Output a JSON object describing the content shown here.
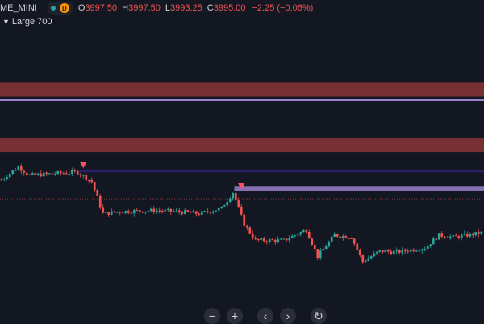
{
  "legend": {
    "symbol": "ME_MINI",
    "interval_badge": "D",
    "open_label": "O",
    "open_value": "3997.50",
    "high_label": "H",
    "high_value": "3997.50",
    "low_label": "L",
    "low_value": "3993.25",
    "close_label": "C",
    "close_value": "3995.00",
    "change": "−2.25 (−0.06%)"
  },
  "indicator": {
    "toggle": "▼",
    "name": "Large 700"
  },
  "colors": {
    "background": "#131722",
    "up": "#26a69a",
    "down": "#ef5350",
    "zone_red": "#a13c3c",
    "zone_purple": "#9b7fc9",
    "line_navy": "#2b1f6b"
  },
  "toolbar": {
    "zoom_out": "−",
    "zoom_in": "+",
    "scroll_left": "‹",
    "scroll_right": "›",
    "reset": "↻"
  },
  "chart_data": {
    "type": "candlestick",
    "price_path": [
      {
        "bar": 0,
        "price": 3992
      },
      {
        "bar": 6,
        "price": 4004
      },
      {
        "bar": 10,
        "price": 3996
      },
      {
        "bar": 20,
        "price": 3998
      },
      {
        "bar": 27,
        "price": 3999
      },
      {
        "bar": 32,
        "price": 3990
      },
      {
        "bar": 36,
        "price": 3960
      },
      {
        "bar": 42,
        "price": 3962
      },
      {
        "bar": 55,
        "price": 3963
      },
      {
        "bar": 62,
        "price": 3962
      },
      {
        "bar": 70,
        "price": 3960
      },
      {
        "bar": 78,
        "price": 3965
      },
      {
        "bar": 82,
        "price": 3980
      },
      {
        "bar": 86,
        "price": 3950
      },
      {
        "bar": 90,
        "price": 3935
      },
      {
        "bar": 100,
        "price": 3935
      },
      {
        "bar": 108,
        "price": 3945
      },
      {
        "bar": 112,
        "price": 3920
      },
      {
        "bar": 118,
        "price": 3940
      },
      {
        "bar": 124,
        "price": 3938
      },
      {
        "bar": 128,
        "price": 3915
      },
      {
        "bar": 134,
        "price": 3925
      },
      {
        "bar": 140,
        "price": 3924
      },
      {
        "bar": 150,
        "price": 3928
      },
      {
        "bar": 155,
        "price": 3940
      },
      {
        "bar": 160,
        "price": 3938
      },
      {
        "bar": 170,
        "price": 3942
      }
    ],
    "zones": [
      {
        "kind": "red",
        "from_price": 4083,
        "to_price": 4070
      },
      {
        "kind": "purple-line",
        "price": 4067
      },
      {
        "kind": "red",
        "from_price": 4031,
        "to_price": 4018
      },
      {
        "kind": "navy-line",
        "price": 4000,
        "from_bar": 28
      },
      {
        "kind": "purple-band",
        "from_price": 3986,
        "to_price": 3981,
        "from_bar": 83
      }
    ],
    "markers": [
      {
        "shape": "triangle-down",
        "bar": 29,
        "price": 4005
      },
      {
        "shape": "triangle-down",
        "bar": 85,
        "price": 3985
      }
    ],
    "last_price_line": 3974
  }
}
